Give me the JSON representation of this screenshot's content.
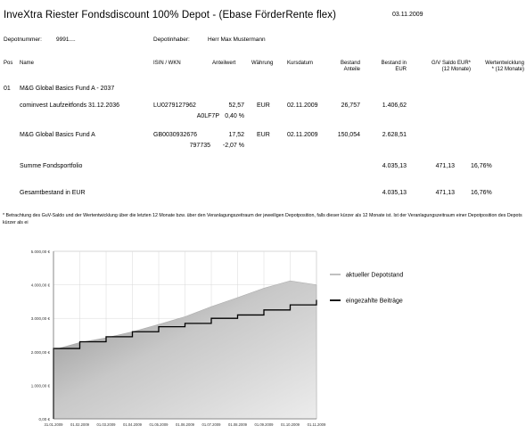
{
  "header": {
    "title": "InveXtra Riester Fondsdiscount 100% Depot - (Ebase FörderRente flex)",
    "date": "03.11.2009",
    "depot_number_label": "Depotnummer:",
    "depot_number": "9991....",
    "owner_label": "Depotinhaber:",
    "owner": "Herr Max Mustermann"
  },
  "table": {
    "headers": {
      "pos": "Pos",
      "name": "Name",
      "isin": "ISIN / WKN",
      "unit_price": "Anteilwert",
      "currency": "Währung",
      "price_date": "Kursdatum",
      "units_1": "Bestand",
      "units_2": "Anteile",
      "value_1": "Bestand in",
      "value_2": "EUR",
      "gv_1": "G/V Saldo EUR*",
      "gv_2": "(12 Monate)",
      "perf_1": "Wertentwicklung",
      "perf_2": "* (12 Monate)"
    },
    "position": {
      "pos": "01",
      "name": "M&G Global Basics Fund A - 2037"
    },
    "rows": [
      {
        "name": "cominvest Laufzeitfonds 31.12.2036",
        "isin": "LU0279127962",
        "wkn": "A0LF7P",
        "price": "52,57",
        "ratio": "0,40 %",
        "currency": "EUR",
        "date": "02.11.2009",
        "units": "26,757",
        "value": "1.406,62"
      },
      {
        "name": "M&G Global Basics Fund A",
        "isin": "GB0030932676",
        "wkn": "797735",
        "price": "17,52",
        "ratio": "-2,07 %",
        "currency": "EUR",
        "date": "02.11.2009",
        "units": "150,054",
        "value": "2.628,51"
      }
    ],
    "sum": {
      "label": "Summe Fondsportfolio",
      "value": "4.035,13",
      "gv": "471,13",
      "perf": "16,76%"
    },
    "total": {
      "label": "Gesamtbestand in EUR",
      "value": "4.035,13",
      "gv": "471,13",
      "perf": "16,76%"
    }
  },
  "footnote": "* Betrachtung des GuV-Saldo und der Wertentwicklung über die letzten 12 Monate bzw. über den Veranlagungszeitraum der jeweiligen Depotposition, falls dieser kürzer als 12 Monate ist. Ist der Veranlagungszeitraum einer Depotposition des Depots kürzer als ei",
  "chart_data": {
    "type": "area",
    "x": [
      "31.01.2009",
      "01.02.2009",
      "01.03.2009",
      "01.04.2009",
      "01.05.2009",
      "01.06.2009",
      "01.07.2009",
      "01.08.2009",
      "01.09.2009",
      "01.10.2009",
      "01.11.2009"
    ],
    "y_ticks": [
      "0,00 €",
      "1.000,00 €",
      "2.000,00 €",
      "3.000,00 €",
      "4.000,00 €",
      "5.000,00 €"
    ],
    "ylim": [
      0,
      5000
    ],
    "series": [
      {
        "name": "aktueller Depotstand",
        "color": "#aaaaaa",
        "values": [
          2060,
          2280,
          2420,
          2600,
          2820,
          3050,
          3350,
          3620,
          3900,
          4120,
          4000
        ]
      },
      {
        "name": "eingezahlte Beiträge",
        "color": "#000000",
        "values": [
          2100,
          2300,
          2450,
          2600,
          2750,
          2850,
          3000,
          3100,
          3250,
          3400,
          3550
        ]
      }
    ],
    "grid": true,
    "legend": "right"
  }
}
